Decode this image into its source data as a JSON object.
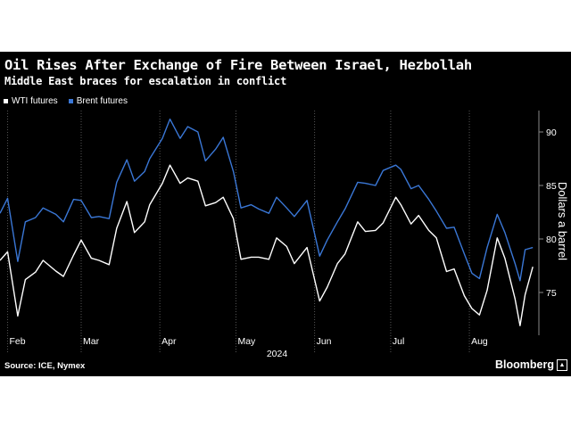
{
  "title": "Oil Rises After Exchange of Fire Between Israel, Hezbollah",
  "subtitle": "Middle East braces for escalation in conflict",
  "source": "Source: ICE, Nymex",
  "brand": "Bloomberg",
  "colors": {
    "background": "#000000",
    "wti": "#ffffff",
    "brent": "#3a77d6",
    "grid": "#555555"
  },
  "chart_data": {
    "type": "line",
    "title": "Oil Rises After Exchange of Fire Between Israel, Hezbollah",
    "subtitle": "Middle East braces for escalation in conflict",
    "xlabel": "2024",
    "ylabel": "Dollars a barrel",
    "ylim": [
      71,
      92
    ],
    "yticks": [
      75,
      80,
      85,
      90
    ],
    "xlim": [
      "2024-01-29",
      "2024-08-27"
    ],
    "xticks": [
      {
        "label": "Feb",
        "date": "2024-02-01"
      },
      {
        "label": "Mar",
        "date": "2024-03-01"
      },
      {
        "label": "Apr",
        "date": "2024-04-01"
      },
      {
        "label": "May",
        "date": "2024-05-01"
      },
      {
        "label": "Jun",
        "date": "2024-06-01"
      },
      {
        "label": "Jul",
        "date": "2024-07-01"
      },
      {
        "label": "Aug",
        "date": "2024-08-01"
      }
    ],
    "year_label": "2024",
    "y_axis_side": "right",
    "grid": "vertical",
    "legend_position": "top-left",
    "series": [
      {
        "name": "WTI futures",
        "color": "#ffffff",
        "points": [
          [
            "2024-01-29",
            78.0
          ],
          [
            "2024-02-01",
            78.8
          ],
          [
            "2024-02-05",
            72.8
          ],
          [
            "2024-02-08",
            76.2
          ],
          [
            "2024-02-12",
            76.9
          ],
          [
            "2024-02-15",
            78.0
          ],
          [
            "2024-02-20",
            77.0
          ],
          [
            "2024-02-23",
            76.5
          ],
          [
            "2024-02-27",
            78.5
          ],
          [
            "2024-03-01",
            79.9
          ],
          [
            "2024-03-05",
            78.2
          ],
          [
            "2024-03-08",
            78.0
          ],
          [
            "2024-03-12",
            77.6
          ],
          [
            "2024-03-15",
            81.0
          ],
          [
            "2024-03-19",
            83.5
          ],
          [
            "2024-03-22",
            80.6
          ],
          [
            "2024-03-26",
            81.6
          ],
          [
            "2024-03-28",
            83.2
          ],
          [
            "2024-04-02",
            85.2
          ],
          [
            "2024-04-05",
            86.9
          ],
          [
            "2024-04-09",
            85.2
          ],
          [
            "2024-04-12",
            85.7
          ],
          [
            "2024-04-16",
            85.4
          ],
          [
            "2024-04-19",
            83.1
          ],
          [
            "2024-04-23",
            83.4
          ],
          [
            "2024-04-26",
            83.9
          ],
          [
            "2024-04-30",
            81.9
          ],
          [
            "2024-05-03",
            78.1
          ],
          [
            "2024-05-07",
            78.3
          ],
          [
            "2024-05-10",
            78.3
          ],
          [
            "2024-05-14",
            78.1
          ],
          [
            "2024-05-17",
            80.1
          ],
          [
            "2024-05-21",
            79.3
          ],
          [
            "2024-05-24",
            77.7
          ],
          [
            "2024-05-29",
            79.2
          ],
          [
            "2024-06-03",
            74.2
          ],
          [
            "2024-06-06",
            75.5
          ],
          [
            "2024-06-10",
            77.7
          ],
          [
            "2024-06-13",
            78.6
          ],
          [
            "2024-06-18",
            81.6
          ],
          [
            "2024-06-21",
            80.7
          ],
          [
            "2024-06-25",
            80.8
          ],
          [
            "2024-06-28",
            81.5
          ],
          [
            "2024-07-03",
            83.9
          ],
          [
            "2024-07-05",
            83.2
          ],
          [
            "2024-07-09",
            81.4
          ],
          [
            "2024-07-12",
            82.2
          ],
          [
            "2024-07-16",
            80.8
          ],
          [
            "2024-07-19",
            80.1
          ],
          [
            "2024-07-23",
            76.96
          ],
          [
            "2024-07-26",
            77.2
          ],
          [
            "2024-07-30",
            74.7
          ],
          [
            "2024-08-02",
            73.5
          ],
          [
            "2024-08-05",
            72.9
          ],
          [
            "2024-08-08",
            75.2
          ],
          [
            "2024-08-12",
            80.1
          ],
          [
            "2024-08-15",
            78.2
          ],
          [
            "2024-08-19",
            74.4
          ],
          [
            "2024-08-21",
            71.9
          ],
          [
            "2024-08-23",
            74.8
          ],
          [
            "2024-08-26",
            77.4
          ]
        ]
      },
      {
        "name": "Brent futures",
        "color": "#3a77d6",
        "points": [
          [
            "2024-01-29",
            82.4
          ],
          [
            "2024-02-01",
            83.8
          ],
          [
            "2024-02-05",
            77.9
          ],
          [
            "2024-02-08",
            81.6
          ],
          [
            "2024-02-12",
            82.0
          ],
          [
            "2024-02-15",
            82.9
          ],
          [
            "2024-02-20",
            82.3
          ],
          [
            "2024-02-23",
            81.6
          ],
          [
            "2024-02-27",
            83.7
          ],
          [
            "2024-03-01",
            83.6
          ],
          [
            "2024-03-05",
            82.0
          ],
          [
            "2024-03-08",
            82.1
          ],
          [
            "2024-03-12",
            81.9
          ],
          [
            "2024-03-15",
            85.3
          ],
          [
            "2024-03-19",
            87.4
          ],
          [
            "2024-03-22",
            85.4
          ],
          [
            "2024-03-26",
            86.3
          ],
          [
            "2024-03-28",
            87.5
          ],
          [
            "2024-04-02",
            89.4
          ],
          [
            "2024-04-05",
            91.2
          ],
          [
            "2024-04-09",
            89.4
          ],
          [
            "2024-04-12",
            90.5
          ],
          [
            "2024-04-16",
            90.0
          ],
          [
            "2024-04-19",
            87.3
          ],
          [
            "2024-04-23",
            88.4
          ],
          [
            "2024-04-26",
            89.5
          ],
          [
            "2024-04-30",
            86.3
          ],
          [
            "2024-05-03",
            82.9
          ],
          [
            "2024-05-07",
            83.2
          ],
          [
            "2024-05-10",
            82.8
          ],
          [
            "2024-05-14",
            82.4
          ],
          [
            "2024-05-17",
            83.9
          ],
          [
            "2024-05-21",
            82.9
          ],
          [
            "2024-05-24",
            82.1
          ],
          [
            "2024-05-29",
            83.6
          ],
          [
            "2024-06-03",
            78.4
          ],
          [
            "2024-06-06",
            79.9
          ],
          [
            "2024-06-10",
            81.6
          ],
          [
            "2024-06-13",
            82.8
          ],
          [
            "2024-06-18",
            85.3
          ],
          [
            "2024-06-21",
            85.2
          ],
          [
            "2024-06-25",
            85.0
          ],
          [
            "2024-06-28",
            86.4
          ],
          [
            "2024-07-03",
            86.9
          ],
          [
            "2024-07-05",
            86.5
          ],
          [
            "2024-07-09",
            84.7
          ],
          [
            "2024-07-12",
            85.0
          ],
          [
            "2024-07-16",
            83.7
          ],
          [
            "2024-07-19",
            82.6
          ],
          [
            "2024-07-23",
            81.0
          ],
          [
            "2024-07-26",
            81.1
          ],
          [
            "2024-07-30",
            78.6
          ],
          [
            "2024-08-02",
            76.8
          ],
          [
            "2024-08-05",
            76.3
          ],
          [
            "2024-08-08",
            79.2
          ],
          [
            "2024-08-12",
            82.3
          ],
          [
            "2024-08-15",
            80.6
          ],
          [
            "2024-08-19",
            77.7
          ],
          [
            "2024-08-21",
            76.1
          ],
          [
            "2024-08-23",
            79.0
          ],
          [
            "2024-08-26",
            79.2
          ]
        ]
      }
    ]
  }
}
